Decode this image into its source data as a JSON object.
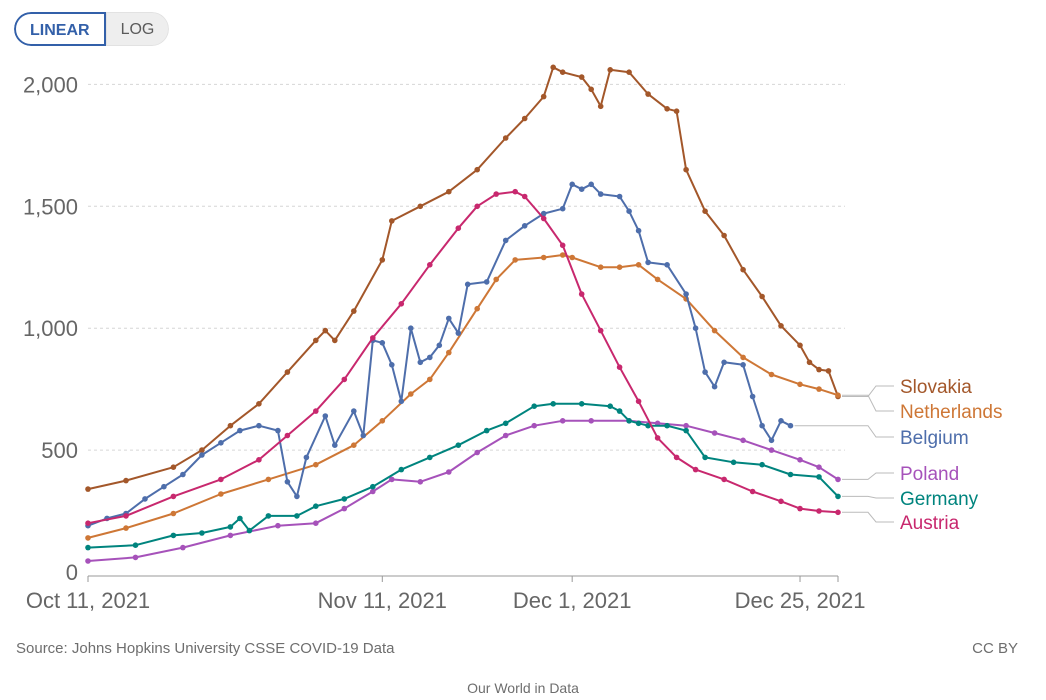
{
  "controls": {
    "linear_label": "LINEAR",
    "log_label": "LOG",
    "selected": "LINEAR"
  },
  "footer": {
    "source": "Source: Johns Hopkins University CSSE COVID-19 Data",
    "license": "CC BY",
    "brand": "Our World in Data"
  },
  "chart_data": {
    "type": "line",
    "y_ticks": [
      0,
      500,
      1000,
      1500,
      2000
    ],
    "y_tick_labels": [
      "0",
      "500",
      "1,000",
      "1,500",
      "2,000"
    ],
    "ylim": [
      0,
      2100
    ],
    "x_ticks": [
      {
        "date": "2021-10-11",
        "label": "Oct 11, 2021"
      },
      {
        "date": "2021-11-11",
        "label": "Nov 11, 2021"
      },
      {
        "date": "2021-12-01",
        "label": "Dec 1, 2021"
      },
      {
        "date": "2021-12-25",
        "label": "Dec 25, 2021"
      }
    ],
    "x_start": "2021-10-11",
    "x_end": "2021-12-29",
    "grid": "horizontal dotted",
    "legend_position": "right end labels",
    "series": [
      {
        "name": "Slovakia",
        "color": "#a3572a",
        "points": [
          [
            "2021-10-11",
            340
          ],
          [
            "2021-10-15",
            375
          ],
          [
            "2021-10-20",
            430
          ],
          [
            "2021-10-23",
            500
          ],
          [
            "2021-10-26",
            600
          ],
          [
            "2021-10-29",
            690
          ],
          [
            "2021-11-01",
            820
          ],
          [
            "2021-11-04",
            950
          ],
          [
            "2021-11-05",
            990
          ],
          [
            "2021-11-06",
            950
          ],
          [
            "2021-11-08",
            1070
          ],
          [
            "2021-11-11",
            1280
          ],
          [
            "2021-11-12",
            1440
          ],
          [
            "2021-11-15",
            1500
          ],
          [
            "2021-11-18",
            1560
          ],
          [
            "2021-11-21",
            1650
          ],
          [
            "2021-11-24",
            1780
          ],
          [
            "2021-11-26",
            1860
          ],
          [
            "2021-11-28",
            1950
          ],
          [
            "2021-11-29",
            2070
          ],
          [
            "2021-11-30",
            2050
          ],
          [
            "2021-12-02",
            2030
          ],
          [
            "2021-12-03",
            1980
          ],
          [
            "2021-12-04",
            1910
          ],
          [
            "2021-12-05",
            2060
          ],
          [
            "2021-12-07",
            2050
          ],
          [
            "2021-12-09",
            1960
          ],
          [
            "2021-12-11",
            1900
          ],
          [
            "2021-12-12",
            1890
          ],
          [
            "2021-12-13",
            1650
          ],
          [
            "2021-12-15",
            1480
          ],
          [
            "2021-12-17",
            1380
          ],
          [
            "2021-12-19",
            1240
          ],
          [
            "2021-12-21",
            1130
          ],
          [
            "2021-12-23",
            1010
          ],
          [
            "2021-12-25",
            930
          ],
          [
            "2021-12-26",
            860
          ],
          [
            "2021-12-27",
            830
          ],
          [
            "2021-12-28",
            825
          ],
          [
            "2021-12-29",
            720
          ]
        ]
      },
      {
        "name": "Netherlands",
        "color": "#ce7736",
        "points": [
          [
            "2021-10-11",
            140
          ],
          [
            "2021-10-15",
            180
          ],
          [
            "2021-10-20",
            240
          ],
          [
            "2021-10-25",
            320
          ],
          [
            "2021-10-30",
            380
          ],
          [
            "2021-11-04",
            440
          ],
          [
            "2021-11-08",
            520
          ],
          [
            "2021-11-11",
            620
          ],
          [
            "2021-11-14",
            730
          ],
          [
            "2021-11-16",
            790
          ],
          [
            "2021-11-18",
            900
          ],
          [
            "2021-11-21",
            1080
          ],
          [
            "2021-11-23",
            1200
          ],
          [
            "2021-11-25",
            1280
          ],
          [
            "2021-11-28",
            1290
          ],
          [
            "2021-11-30",
            1300
          ],
          [
            "2021-12-01",
            1290
          ],
          [
            "2021-12-04",
            1250
          ],
          [
            "2021-12-06",
            1250
          ],
          [
            "2021-12-08",
            1260
          ],
          [
            "2021-12-10",
            1200
          ],
          [
            "2021-12-13",
            1120
          ],
          [
            "2021-12-16",
            990
          ],
          [
            "2021-12-19",
            880
          ],
          [
            "2021-12-22",
            810
          ],
          [
            "2021-12-25",
            770
          ],
          [
            "2021-12-27",
            750
          ],
          [
            "2021-12-29",
            725
          ]
        ]
      },
      {
        "name": "Belgium",
        "color": "#4e6eab",
        "points": [
          [
            "2021-10-11",
            190
          ],
          [
            "2021-10-13",
            220
          ],
          [
            "2021-10-15",
            240
          ],
          [
            "2021-10-17",
            300
          ],
          [
            "2021-10-19",
            350
          ],
          [
            "2021-10-21",
            400
          ],
          [
            "2021-10-23",
            480
          ],
          [
            "2021-10-25",
            530
          ],
          [
            "2021-10-27",
            580
          ],
          [
            "2021-10-29",
            600
          ],
          [
            "2021-10-31",
            580
          ],
          [
            "2021-11-01",
            370
          ],
          [
            "2021-11-02",
            310
          ],
          [
            "2021-11-03",
            470
          ],
          [
            "2021-11-05",
            640
          ],
          [
            "2021-11-06",
            520
          ],
          [
            "2021-11-08",
            660
          ],
          [
            "2021-11-09",
            560
          ],
          [
            "2021-11-10",
            950
          ],
          [
            "2021-11-11",
            940
          ],
          [
            "2021-11-12",
            850
          ],
          [
            "2021-11-13",
            700
          ],
          [
            "2021-11-14",
            1000
          ],
          [
            "2021-11-15",
            860
          ],
          [
            "2021-11-16",
            880
          ],
          [
            "2021-11-17",
            930
          ],
          [
            "2021-11-18",
            1040
          ],
          [
            "2021-11-19",
            980
          ],
          [
            "2021-11-20",
            1180
          ],
          [
            "2021-11-22",
            1190
          ],
          [
            "2021-11-24",
            1360
          ],
          [
            "2021-11-26",
            1420
          ],
          [
            "2021-11-28",
            1470
          ],
          [
            "2021-11-30",
            1490
          ],
          [
            "2021-12-01",
            1590
          ],
          [
            "2021-12-02",
            1570
          ],
          [
            "2021-12-03",
            1590
          ],
          [
            "2021-12-04",
            1550
          ],
          [
            "2021-12-06",
            1540
          ],
          [
            "2021-12-07",
            1480
          ],
          [
            "2021-12-08",
            1400
          ],
          [
            "2021-12-09",
            1270
          ],
          [
            "2021-12-11",
            1260
          ],
          [
            "2021-12-13",
            1140
          ],
          [
            "2021-12-14",
            1000
          ],
          [
            "2021-12-15",
            820
          ],
          [
            "2021-12-16",
            760
          ],
          [
            "2021-12-17",
            860
          ],
          [
            "2021-12-19",
            850
          ],
          [
            "2021-12-20",
            720
          ],
          [
            "2021-12-21",
            600
          ],
          [
            "2021-12-22",
            540
          ],
          [
            "2021-12-23",
            620
          ],
          [
            "2021-12-24",
            600
          ]
        ]
      },
      {
        "name": "Poland",
        "color": "#a652ba",
        "points": [
          [
            "2021-10-11",
            45
          ],
          [
            "2021-10-16",
            60
          ],
          [
            "2021-10-21",
            100
          ],
          [
            "2021-10-26",
            150
          ],
          [
            "2021-10-31",
            190
          ],
          [
            "2021-11-04",
            200
          ],
          [
            "2021-11-07",
            260
          ],
          [
            "2021-11-10",
            330
          ],
          [
            "2021-11-12",
            380
          ],
          [
            "2021-11-15",
            370
          ],
          [
            "2021-11-18",
            410
          ],
          [
            "2021-11-21",
            490
          ],
          [
            "2021-11-24",
            560
          ],
          [
            "2021-11-27",
            600
          ],
          [
            "2021-11-30",
            620
          ],
          [
            "2021-12-03",
            620
          ],
          [
            "2021-12-07",
            620
          ],
          [
            "2021-12-10",
            610
          ],
          [
            "2021-12-13",
            600
          ],
          [
            "2021-12-16",
            570
          ],
          [
            "2021-12-19",
            540
          ],
          [
            "2021-12-22",
            500
          ],
          [
            "2021-12-25",
            460
          ],
          [
            "2021-12-27",
            430
          ],
          [
            "2021-12-29",
            380
          ]
        ]
      },
      {
        "name": "Germany",
        "color": "#00847e",
        "points": [
          [
            "2021-10-11",
            100
          ],
          [
            "2021-10-16",
            110
          ],
          [
            "2021-10-20",
            150
          ],
          [
            "2021-10-23",
            160
          ],
          [
            "2021-10-26",
            185
          ],
          [
            "2021-10-27",
            220
          ],
          [
            "2021-10-28",
            170
          ],
          [
            "2021-10-30",
            230
          ],
          [
            "2021-11-02",
            230
          ],
          [
            "2021-11-04",
            270
          ],
          [
            "2021-11-07",
            300
          ],
          [
            "2021-11-10",
            350
          ],
          [
            "2021-11-13",
            420
          ],
          [
            "2021-11-16",
            470
          ],
          [
            "2021-11-19",
            520
          ],
          [
            "2021-11-22",
            580
          ],
          [
            "2021-11-24",
            610
          ],
          [
            "2021-11-27",
            680
          ],
          [
            "2021-11-29",
            690
          ],
          [
            "2021-12-02",
            690
          ],
          [
            "2021-12-05",
            680
          ],
          [
            "2021-12-06",
            660
          ],
          [
            "2021-12-07",
            620
          ],
          [
            "2021-12-08",
            610
          ],
          [
            "2021-12-09",
            600
          ],
          [
            "2021-12-11",
            600
          ],
          [
            "2021-12-13",
            580
          ],
          [
            "2021-12-15",
            470
          ],
          [
            "2021-12-18",
            450
          ],
          [
            "2021-12-21",
            440
          ],
          [
            "2021-12-24",
            400
          ],
          [
            "2021-12-27",
            390
          ],
          [
            "2021-12-29",
            310
          ]
        ]
      },
      {
        "name": "Austria",
        "color": "#c8286e",
        "points": [
          [
            "2021-10-11",
            200
          ],
          [
            "2021-10-15",
            230
          ],
          [
            "2021-10-20",
            310
          ],
          [
            "2021-10-25",
            380
          ],
          [
            "2021-10-29",
            460
          ],
          [
            "2021-11-01",
            560
          ],
          [
            "2021-11-04",
            660
          ],
          [
            "2021-11-07",
            790
          ],
          [
            "2021-11-10",
            960
          ],
          [
            "2021-11-13",
            1100
          ],
          [
            "2021-11-16",
            1260
          ],
          [
            "2021-11-19",
            1410
          ],
          [
            "2021-11-21",
            1500
          ],
          [
            "2021-11-23",
            1550
          ],
          [
            "2021-11-25",
            1560
          ],
          [
            "2021-11-26",
            1540
          ],
          [
            "2021-11-28",
            1450
          ],
          [
            "2021-11-30",
            1340
          ],
          [
            "2021-12-02",
            1140
          ],
          [
            "2021-12-04",
            990
          ],
          [
            "2021-12-06",
            840
          ],
          [
            "2021-12-08",
            700
          ],
          [
            "2021-12-10",
            550
          ],
          [
            "2021-12-12",
            470
          ],
          [
            "2021-12-14",
            420
          ],
          [
            "2021-12-17",
            380
          ],
          [
            "2021-12-20",
            330
          ],
          [
            "2021-12-23",
            290
          ],
          [
            "2021-12-25",
            260
          ],
          [
            "2021-12-27",
            250
          ],
          [
            "2021-12-29",
            245
          ]
        ]
      }
    ]
  }
}
